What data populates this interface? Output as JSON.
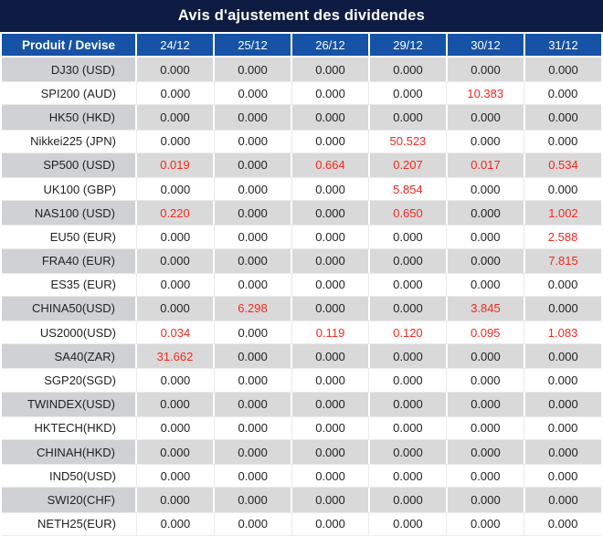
{
  "title": "Avis d'ajustement des dividendes",
  "table": {
    "header": {
      "product_label": "Produit / Devise",
      "dates": [
        "24/12",
        "25/12",
        "26/12",
        "29/12",
        "30/12",
        "31/12"
      ]
    },
    "rows": [
      {
        "product": "DJ30 (USD)",
        "values": [
          "0.000",
          "0.000",
          "0.000",
          "0.000",
          "0.000",
          "0.000"
        ]
      },
      {
        "product": "SPI200 (AUD)",
        "values": [
          "0.000",
          "0.000",
          "0.000",
          "0.000",
          "10.383",
          "0.000"
        ]
      },
      {
        "product": "HK50 (HKD)",
        "values": [
          "0.000",
          "0.000",
          "0.000",
          "0.000",
          "0.000",
          "0.000"
        ]
      },
      {
        "product": "Nikkei225 (JPN)",
        "values": [
          "0.000",
          "0.000",
          "0.000",
          "50.523",
          "0.000",
          "0.000"
        ]
      },
      {
        "product": "SP500 (USD)",
        "values": [
          "0.019",
          "0.000",
          "0.664",
          "0.207",
          "0.017",
          "0.534"
        ]
      },
      {
        "product": "UK100 (GBP)",
        "values": [
          "0.000",
          "0.000",
          "0.000",
          "5.854",
          "0.000",
          "0.000"
        ]
      },
      {
        "product": "NAS100 (USD)",
        "values": [
          "0.220",
          "0.000",
          "0.000",
          "0.650",
          "0.000",
          "1.002"
        ]
      },
      {
        "product": "EU50 (EUR)",
        "values": [
          "0.000",
          "0.000",
          "0.000",
          "0.000",
          "0.000",
          "2.588"
        ]
      },
      {
        "product": "FRA40 (EUR)",
        "values": [
          "0.000",
          "0.000",
          "0.000",
          "0.000",
          "0.000",
          "7.815"
        ]
      },
      {
        "product": "ES35 (EUR)",
        "values": [
          "0.000",
          "0.000",
          "0.000",
          "0.000",
          "0.000",
          "0.000"
        ]
      },
      {
        "product": "CHINA50(USD)",
        "values": [
          "0.000",
          "6.298",
          "0.000",
          "0.000",
          "3.845",
          "0.000"
        ]
      },
      {
        "product": "US2000(USD)",
        "values": [
          "0.034",
          "0.000",
          "0.119",
          "0.120",
          "0.095",
          "1.083"
        ]
      },
      {
        "product": "SA40(ZAR)",
        "values": [
          "31.662",
          "0.000",
          "0.000",
          "0.000",
          "0.000",
          "0.000"
        ]
      },
      {
        "product": "SGP20(SGD)",
        "values": [
          "0.000",
          "0.000",
          "0.000",
          "0.000",
          "0.000",
          "0.000"
        ]
      },
      {
        "product": "TWINDEX(USD)",
        "values": [
          "0.000",
          "0.000",
          "0.000",
          "0.000",
          "0.000",
          "0.000"
        ]
      },
      {
        "product": "HKTECH(HKD)",
        "values": [
          "0.000",
          "0.000",
          "0.000",
          "0.000",
          "0.000",
          "0.000"
        ]
      },
      {
        "product": "CHINAH(HKD)",
        "values": [
          "0.000",
          "0.000",
          "0.000",
          "0.000",
          "0.000",
          "0.000"
        ]
      },
      {
        "product": "IND50(USD)",
        "values": [
          "0.000",
          "0.000",
          "0.000",
          "0.000",
          "0.000",
          "0.000"
        ]
      },
      {
        "product": "SWI20(CHF)",
        "values": [
          "0.000",
          "0.000",
          "0.000",
          "0.000",
          "0.000",
          "0.000"
        ]
      },
      {
        "product": "NETH25(EUR)",
        "values": [
          "0.000",
          "0.000",
          "0.000",
          "0.000",
          "0.000",
          "0.000"
        ]
      }
    ],
    "zero_value": "0.000"
  },
  "colors": {
    "title_bg": "#0e1c44",
    "header_bg": "#1652a6",
    "row_gray": "#d9d9d9",
    "product_gray": "#d0d1d5",
    "grid_line": "#ebebeb",
    "red": "#f5281d",
    "text": "#222222"
  }
}
